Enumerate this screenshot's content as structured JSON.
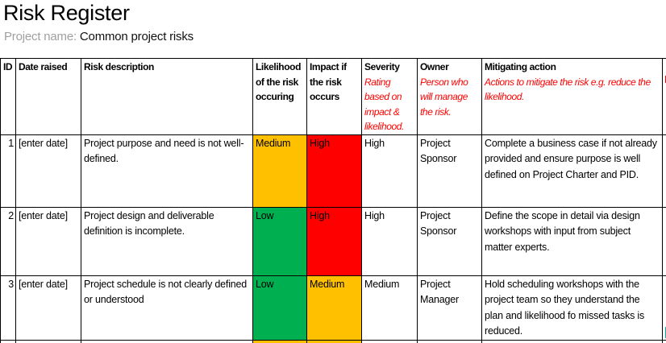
{
  "page": {
    "title": "Risk Register",
    "project_label": "Project name:",
    "project_value": "Common project risks"
  },
  "colors": {
    "amber": "#FFC000",
    "green": "#00B050",
    "red": "#FF0000",
    "note_red": "#FF0000",
    "label_gray": "#A0A0A0",
    "clip_teal": "#00B0A0"
  },
  "table": {
    "headers": {
      "id": "ID",
      "date": "Date raised",
      "description": "Risk description",
      "likelihood": "Likelihood of the risk occuring",
      "impact": "Impact if the risk occurs",
      "severity": {
        "title": "Severity",
        "note": "Rating based on impact & likelihood."
      },
      "owner": {
        "title": "Owner",
        "note": "Person who will manage the risk."
      },
      "mitigation": {
        "title": "Mitigating action",
        "note": "Actions to mitigate the risk e.g. reduce the likelihood."
      }
    },
    "rows": [
      {
        "id": "1",
        "date": "[enter date]",
        "description": "Project purpose and need is not well-defined.",
        "likelihood": {
          "text": "Medium",
          "color": "amber"
        },
        "impact": {
          "text": "High",
          "color": "red"
        },
        "severity": "High",
        "owner": "Project Sponsor",
        "mitigation": "Complete a business case if not already provided and ensure purpose is well defined on Project Charter and PID."
      },
      {
        "id": "2",
        "date": "[enter date]",
        "description": "Project design and deliverable definition is incomplete.",
        "likelihood": {
          "text": "Low",
          "color": "green"
        },
        "impact": {
          "text": "High",
          "color": "red"
        },
        "severity": "High",
        "owner": "Project Sponsor",
        "mitigation": "Define the scope in detail via design workshops with input from subject matter experts."
      },
      {
        "id": "3",
        "date": "[enter date]",
        "description": "Project schedule is not clearly defined or understood",
        "likelihood": {
          "text": "Low",
          "color": "green"
        },
        "impact": {
          "text": "Medium",
          "color": "amber"
        },
        "severity": "Medium",
        "owner": "Project Manager",
        "mitigation": "Hold scheduling workshops with the project team so they understand the plan and likelihood fo missed tasks is reduced."
      }
    ],
    "partial_next_row": {
      "likelihood_color": "amber",
      "impact_color": "amber"
    }
  }
}
